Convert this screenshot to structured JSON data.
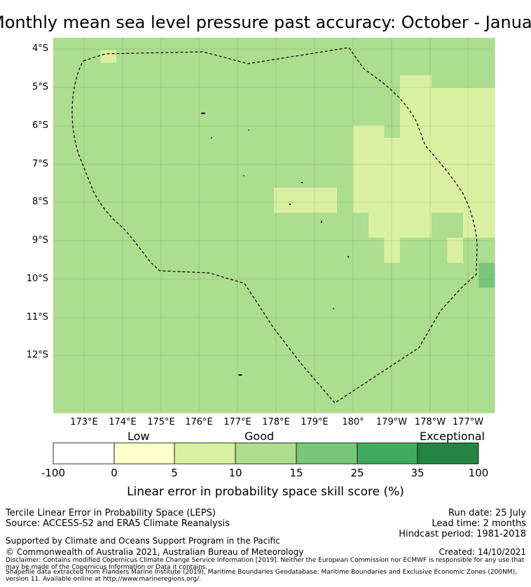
{
  "title": "Monthly mean sea level pressure past accuracy: October - January",
  "map": {
    "lat_labels": [
      "4°S",
      "5°S",
      "6°S",
      "7°S",
      "8°S",
      "9°S",
      "10°S",
      "11°S",
      "12°S"
    ],
    "lon_labels": [
      "173°E",
      "174°E",
      "175°E",
      "176°E",
      "177°E",
      "178°E",
      "179°E",
      "180°",
      "179°W",
      "178°W",
      "177°W"
    ],
    "colors": [
      "#ffffff",
      "#ffffcc",
      "#d9f0a3",
      "#addd8e",
      "#78c679",
      "#41ab5d",
      "#238443"
    ],
    "grid": [
      "3333333333333333333333333333",
      "3332333333333333333333333333",
      "3333333333333333333333333333",
      "3333333333333333333333223333",
      "3333333333333333333333222222",
      "3333333333333333333333222222",
      "3333333333333333333333222222",
      "3333333333333333333223222222",
      "3333333333333333333222222222",
      "3333333333333333333222222222",
      "3333333333333333333222222222",
      "3333333333333333333222222222",
      "3333333333333322223222222222",
      "3333333333333322223222222222",
      "3333333333333333333322223322",
      "3333333333333333333322223322",
      "3333333333333333333332333233",
      "3333333333333333333332333233",
      "3333333333333333333333333334",
      "3333333333333333333333333334",
      "3333333333333333333333333333",
      "3333333333333333333333333333",
      "3333333333333333333333333333",
      "3333333333333333333333333333",
      "3333333333333333333333333333",
      "3333333333333333333333333333",
      "3333333333333333333333333333",
      "3333333333333333333333333333",
      "3333333333333333333333333333",
      "3333333333333333333333333333"
    ]
  },
  "colorbar": {
    "categories": [
      "Low",
      "Good",
      "Exceptional"
    ],
    "ticks": [
      "-100",
      "0",
      "5",
      "10",
      "15",
      "25",
      "35",
      "100"
    ],
    "title": "Linear error in probability space skill score (%)"
  },
  "footer": {
    "method": "Tercile Linear Error in Probability Space (LEPS)",
    "source": "Source: ACCESS-S2 and ERA5 Climate Reanalysis",
    "run_date": "Run date: 25 July",
    "lead_time": "Lead time: 2 months",
    "hindcast": "Hindcast period: 1981-2018",
    "support": "Supported by Climate and Oceans Support Program in the Pacific",
    "copyright": "© Commonwealth of Australia 2021, Australian Bureau of Meteorology",
    "created": "Created: 14/10/2021",
    "disclaimer1": "Disclaimer: Contains modified Copernicus Climate Change Service Information [2019]. Neither the European Commission nor ECMWF is responsible for any use that may be made of the Copernicus Information or Data it contains.",
    "disclaimer2": "Shapefile data extracted from Flanders Marine Institute (2019), Maritime Boundaries Geodatabase: Maritime Boundaries and Exclusive Economic Zones (200NM), version 11. Available online at http://www.marineregions.org/."
  }
}
